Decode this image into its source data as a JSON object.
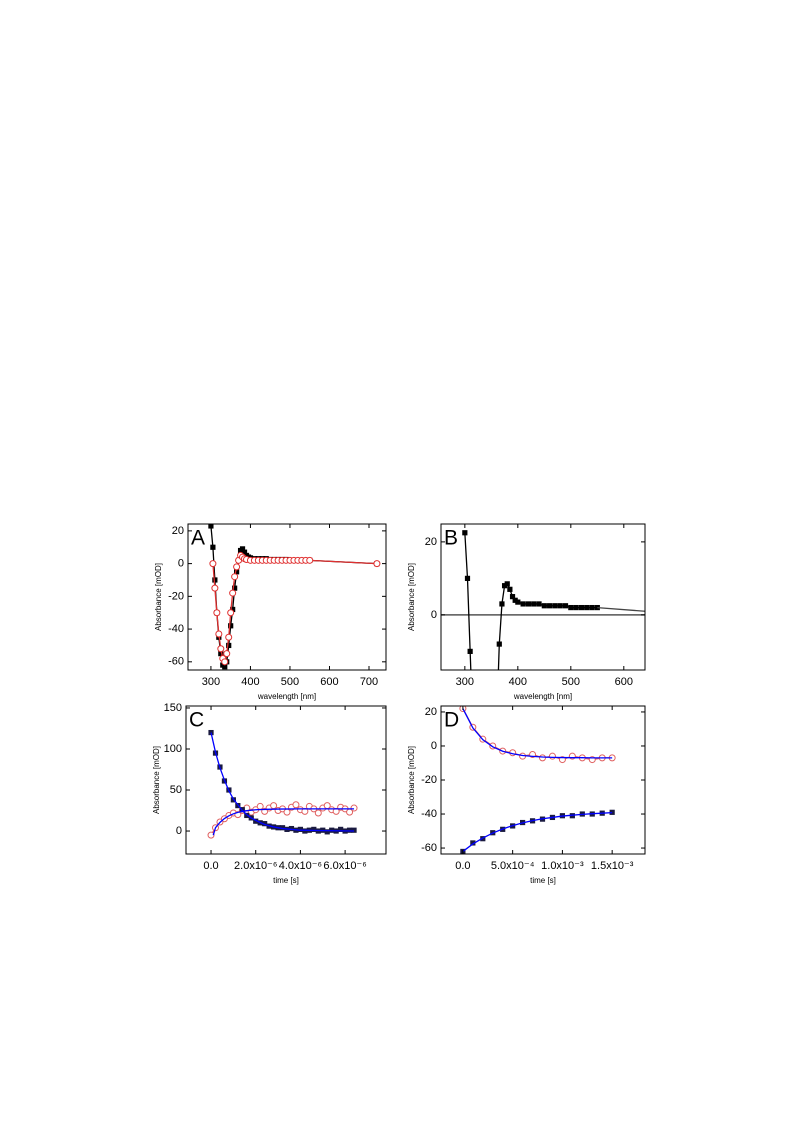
{
  "chart_data": [
    {
      "type": "scatter-line",
      "panel": "A",
      "xlabel": "wavelength [nm]",
      "ylabel": "Absorbance [mOD]",
      "xlim": [
        242,
        743
      ],
      "ylim": [
        -65,
        24.2
      ],
      "xticks": [
        300,
        400,
        500,
        600,
        700
      ],
      "yticks": [
        -60,
        -40,
        -20,
        0,
        20
      ],
      "series": [
        {
          "color": "#000000",
          "marker": "square",
          "line": true,
          "x": [
            300,
            305,
            310,
            315,
            320,
            325,
            330,
            335,
            340,
            345,
            350,
            355,
            360,
            365,
            370,
            375,
            380,
            385,
            390,
            395,
            400,
            410,
            420,
            430,
            440,
            450,
            460,
            470,
            480,
            490,
            500,
            510,
            520,
            530,
            540,
            550,
            720
          ],
          "values": [
            23,
            10,
            -10,
            -30,
            -45,
            -55,
            -62,
            -63,
            -60,
            -50,
            -38,
            -28,
            -15,
            -5,
            2,
            8,
            9,
            7,
            5,
            4,
            3.5,
            3,
            3,
            3,
            3,
            2.5,
            2.5,
            2.5,
            2.5,
            2.5,
            2,
            2,
            2,
            2,
            2,
            2,
            0
          ]
        },
        {
          "color": "#e03030",
          "marker": "circle",
          "line": true,
          "x": [
            305,
            310,
            315,
            320,
            325,
            330,
            335,
            340,
            345,
            350,
            355,
            360,
            365,
            370,
            375,
            380,
            385,
            390,
            400,
            410,
            420,
            430,
            440,
            450,
            460,
            470,
            480,
            490,
            500,
            510,
            520,
            530,
            540,
            550,
            720
          ],
          "values": [
            0,
            -15,
            -30,
            -43,
            -52,
            -58,
            -60,
            -55,
            -45,
            -30,
            -18,
            -8,
            -2,
            2,
            5,
            4,
            3,
            2.5,
            2,
            2,
            2,
            2,
            2,
            2,
            2,
            2,
            2,
            2,
            2,
            2,
            2,
            2,
            2,
            2,
            0
          ]
        }
      ]
    },
    {
      "type": "scatter-line",
      "panel": "B",
      "xlabel": "wavelength [nm]",
      "ylabel": "Absorbance [mOD]",
      "xlim": [
        255,
        640
      ],
      "ylim": [
        -15.1,
        24.9
      ],
      "xticks": [
        300,
        400,
        500,
        600
      ],
      "yticks": [
        0,
        20
      ],
      "reference_line": 0,
      "series": [
        {
          "color": "#000000",
          "marker": "square",
          "line": true,
          "x": [
            300,
            305,
            310,
            315,
            360,
            365,
            370,
            375,
            380,
            385,
            390,
            395,
            400,
            410,
            420,
            430,
            440,
            450,
            460,
            470,
            480,
            490,
            500,
            510,
            520,
            530,
            540,
            550
          ],
          "values": [
            22.5,
            10,
            -10,
            -30,
            -30,
            -8,
            3,
            8,
            8.5,
            7,
            5,
            4,
            3.5,
            3,
            3,
            3,
            3,
            2.5,
            2.5,
            2.5,
            2.5,
            2.5,
            2,
            2,
            2,
            2,
            2,
            2
          ]
        },
        {
          "color": "#444444",
          "marker": null,
          "line": true,
          "x": [
            550,
            640
          ],
          "values": [
            2,
            1
          ]
        }
      ]
    },
    {
      "type": "scatter-line",
      "panel": "C",
      "xlabel": "time [s]",
      "ylabel": "Absorbance [mOD]",
      "xlim": [
        -1.12e-06,
        7.83e-06
      ],
      "ylim": [
        -28,
        152.4
      ],
      "xticks": [
        {
          "value": 0,
          "label": "0.0"
        },
        {
          "value": 2e-06,
          "label": "2.0x10⁻⁶"
        },
        {
          "value": 4e-06,
          "label": "4.0x10⁻⁶"
        },
        {
          "value": 6e-06,
          "label": "6.0x10⁻⁶"
        }
      ],
      "yticks": [
        0,
        50,
        100,
        150
      ],
      "series": [
        {
          "color": "#e06060",
          "marker": "circle",
          "line": true,
          "x": [
            0,
            2e-07,
            4e-07,
            6e-07,
            8e-07,
            1e-06,
            1.2e-06,
            1.4e-06,
            1.6e-06,
            1.8e-06,
            2e-06,
            2.2e-06,
            2.4e-06,
            2.6e-06,
            2.8e-06,
            3e-06,
            3.2e-06,
            3.4e-06,
            3.6e-06,
            3.8e-06,
            4e-06,
            4.2e-06,
            4.4e-06,
            4.6e-06,
            4.8e-06,
            5e-06,
            5.2e-06,
            5.4e-06,
            5.6e-06,
            5.8e-06,
            6e-06,
            6.2e-06,
            6.4e-06
          ],
          "values": [
            -5,
            4,
            11,
            15,
            19,
            22,
            20,
            25,
            28,
            23,
            26,
            30,
            24,
            28,
            31,
            25,
            27,
            23,
            29,
            32,
            26,
            24,
            30,
            27,
            22,
            28,
            31,
            26,
            24,
            29,
            27,
            23,
            28
          ]
        },
        {
          "color": "#1a1a40",
          "marker": "square",
          "line": false,
          "x": [
            0,
            2e-07,
            4e-07,
            6e-07,
            8e-07,
            1e-06,
            1.2e-06,
            1.4e-06,
            1.6e-06,
            1.8e-06,
            2e-06,
            2.2e-06,
            2.4e-06,
            2.6e-06,
            2.8e-06,
            3e-06,
            3.2e-06,
            3.4e-06,
            3.6e-06,
            3.8e-06,
            4e-06,
            4.2e-06,
            4.4e-06,
            4.6e-06,
            4.8e-06,
            5e-06,
            5.2e-06,
            5.4e-06,
            5.6e-06,
            5.8e-06,
            6e-06,
            6.2e-06,
            6.4e-06
          ],
          "values": [
            120,
            95,
            78,
            61,
            50,
            38,
            31,
            26,
            19,
            16,
            12,
            10,
            9,
            6,
            5,
            4,
            4,
            2,
            3,
            1,
            2,
            0,
            1,
            2,
            0,
            1,
            -1,
            1,
            0,
            2,
            0,
            1,
            1
          ]
        },
        {
          "color": "#0000ff",
          "marker": null,
          "line": true,
          "x": [
            0,
            2e-07,
            4e-07,
            6e-07,
            8e-07,
            1e-06,
            1.2e-06,
            1.4e-06,
            1.6e-06,
            1.8e-06,
            2e-06,
            2.4e-06,
            2.8e-06,
            3.2e-06,
            3.6e-06,
            4e-06,
            5e-06,
            6.4e-06
          ],
          "values": [
            120,
            96,
            77,
            62,
            49,
            39,
            32,
            25,
            20,
            16,
            13,
            8,
            5,
            3,
            2,
            1,
            0.5,
            0
          ]
        },
        {
          "color": "#0000ff",
          "marker": null,
          "line": true,
          "x": [
            1e-07,
            2e-07,
            4e-07,
            6e-07,
            8e-07,
            1e-06,
            1.2e-06,
            1.4e-06,
            1.6e-06,
            1.8e-06,
            2e-06,
            2.5e-06,
            3e-06,
            4e-06,
            5e-06,
            6.4e-06
          ],
          "values": [
            -5,
            4.1,
            10.6,
            15.2,
            18.6,
            21,
            22.7,
            23.9,
            24.8,
            25.4,
            25.9,
            26.5,
            26.8,
            27,
            27,
            27
          ]
        }
      ]
    },
    {
      "type": "scatter-line",
      "panel": "D",
      "xlabel": "time [s]",
      "ylabel": "Absorbance [mOD]",
      "xlim": [
        -0.00022,
        0.00183
      ],
      "ylim": [
        -63.5,
        23.5
      ],
      "xticks": [
        {
          "value": 0,
          "label": "0.0"
        },
        {
          "value": 0.0005,
          "label": "5.0x10⁻⁴"
        },
        {
          "value": 0.001,
          "label": "1.0x10⁻³"
        },
        {
          "value": 0.0015,
          "label": "1.5x10⁻³"
        }
      ],
      "yticks": [
        -60,
        -40,
        -20,
        0,
        20
      ],
      "series": [
        {
          "color": "#e06060",
          "marker": "circle",
          "line": true,
          "x": [
            0,
            0.0001,
            0.0002,
            0.0003,
            0.0004,
            0.0005,
            0.0006,
            0.0007,
            0.0008,
            0.0009,
            0.001,
            0.0011,
            0.0012,
            0.0013,
            0.0014,
            0.0015
          ],
          "values": [
            22,
            11,
            4,
            0,
            -3,
            -4,
            -6,
            -5,
            -7,
            -6,
            -8,
            -6,
            -7,
            -8,
            -7,
            -7
          ]
        },
        {
          "color": "#1a1a40",
          "marker": "square",
          "line": false,
          "x": [
            0,
            0.0001,
            0.0002,
            0.0003,
            0.0004,
            0.0005,
            0.0006,
            0.0007,
            0.0008,
            0.0009,
            0.001,
            0.0011,
            0.0012,
            0.0013,
            0.0014,
            0.0015
          ],
          "values": [
            -62,
            -57,
            -54.5,
            -51,
            -49,
            -47,
            -45,
            -44,
            -43,
            -42,
            -41,
            -41,
            -40,
            -40,
            -39.5,
            -39
          ]
        },
        {
          "color": "#0000ff",
          "marker": null,
          "line": true,
          "x": [
            0,
            0.0001,
            0.0002,
            0.0003,
            0.0004,
            0.0005,
            0.0006,
            0.0007,
            0.0008,
            0.0009,
            0.001,
            0.0011,
            0.0012,
            0.0013,
            0.0014,
            0.0015
          ],
          "values": [
            22,
            10.6,
            3.7,
            -0.5,
            -3.1,
            -4.6,
            -5.6,
            -6.1,
            -6.5,
            -6.7,
            -6.8,
            -6.9,
            -6.9,
            -7,
            -7,
            -7
          ]
        },
        {
          "color": "#0000ff",
          "marker": null,
          "line": true,
          "x": [
            0,
            0.0001,
            0.0002,
            0.0003,
            0.0004,
            0.0005,
            0.0006,
            0.0007,
            0.0008,
            0.0009,
            0.001,
            0.0011,
            0.0012,
            0.0013,
            0.0014,
            0.0015
          ],
          "values": [
            -62,
            -57.6,
            -54.1,
            -51.2,
            -48.8,
            -46.8,
            -45.2,
            -43.9,
            -42.8,
            -42,
            -41.2,
            -40.7,
            -40.2,
            -39.8,
            -39.5,
            -39.2
          ]
        }
      ]
    }
  ]
}
